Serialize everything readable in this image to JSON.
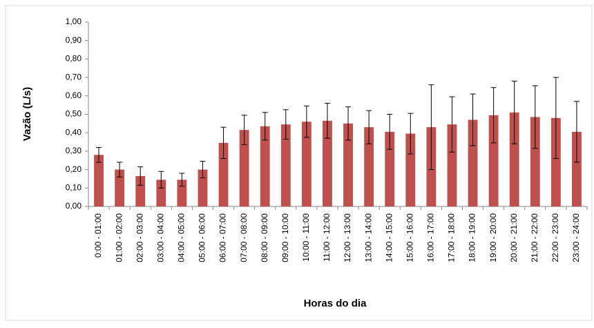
{
  "chart_data": {
    "type": "bar",
    "x_label": "Horas do dia",
    "y_label": "Vazão (L/s)",
    "categories": [
      "0:00 - 01:00",
      "01:00 - 02:00",
      "02:00 - 03:00",
      "03:00 - 04:00",
      "04:00 - 05:00",
      "05:00 - 06:00",
      "06:00 - 07:00",
      "07:00 - 08:00",
      "08:00 - 09:00",
      "09:00 - 10:00",
      "10:00 - 11:00",
      "11:00 - 12:00",
      "12:00 - 13:00",
      "13:00 - 14:00",
      "14:00 - 15:00",
      "15:00 - 16:00",
      "16:00 - 17:00",
      "17:00 - 18:00",
      "18:00 - 19:00",
      "19:00 - 20:00",
      "20:00 - 21:00",
      "21:00 - 22:00",
      "22:00 - 23:00",
      "23:00 - 24:00"
    ],
    "values": [
      0.28,
      0.2,
      0.165,
      0.145,
      0.145,
      0.2,
      0.345,
      0.415,
      0.435,
      0.445,
      0.46,
      0.465,
      0.45,
      0.43,
      0.405,
      0.395,
      0.43,
      0.445,
      0.47,
      0.495,
      0.51,
      0.485,
      0.48,
      0.405
    ],
    "errors": [
      0.04,
      0.04,
      0.05,
      0.045,
      0.035,
      0.045,
      0.085,
      0.08,
      0.075,
      0.08,
      0.085,
      0.095,
      0.09,
      0.09,
      0.095,
      0.11,
      0.23,
      0.15,
      0.14,
      0.15,
      0.17,
      0.17,
      0.22,
      0.165
    ],
    "color": "#c0504d",
    "ylim": [
      0,
      1
    ],
    "yticks": [
      {
        "value": 0,
        "label": "0,00"
      },
      {
        "value": 0.1,
        "label": "0,10"
      },
      {
        "value": 0.2,
        "label": "0,20"
      },
      {
        "value": 0.3,
        "label": "0,30"
      },
      {
        "value": 0.4,
        "label": "0,40"
      },
      {
        "value": 0.5,
        "label": "0,50"
      },
      {
        "value": 0.6,
        "label": "0,60"
      },
      {
        "value": 0.7,
        "label": "0,70"
      },
      {
        "value": 0.8,
        "label": "0,80"
      },
      {
        "value": 0.9,
        "label": "0,90"
      },
      {
        "value": 1,
        "label": "1,00"
      }
    ],
    "grid": false
  }
}
